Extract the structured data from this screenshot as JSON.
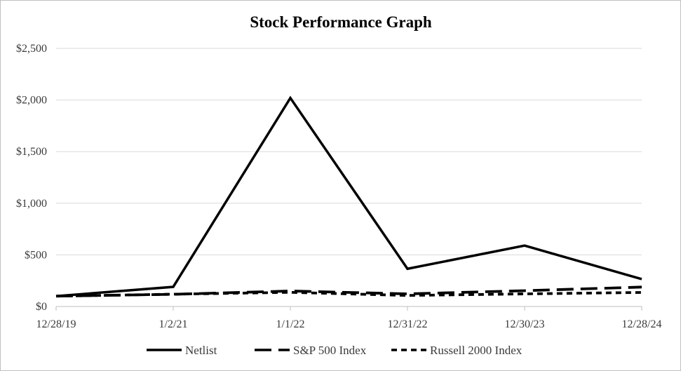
{
  "chart_data": {
    "type": "line",
    "title": "Stock Performance Graph",
    "xlabel": "",
    "ylabel": "",
    "categories": [
      "12/28/19",
      "1/2/21",
      "1/1/22",
      "12/31/22",
      "12/30/23",
      "12/28/24"
    ],
    "ylim": [
      0,
      2500
    ],
    "yticks": [
      0,
      500,
      1000,
      1500,
      2000,
      2500
    ],
    "ytick_labels": [
      "$0",
      "$500",
      "$1,000",
      "$1,500",
      "$2,000",
      "$2,500"
    ],
    "grid": true,
    "legend_position": "bottom",
    "series": [
      {
        "name": "Netlist",
        "values": [
          100,
          190,
          2020,
          365,
          590,
          265
        ],
        "dash": "solid"
      },
      {
        "name": "S&P 500 Index",
        "values": [
          100,
          118,
          150,
          122,
          153,
          188
        ],
        "dash": "long-dash"
      },
      {
        "name": "Russell 2000 Index",
        "values": [
          100,
          119,
          137,
          107,
          122,
          136
        ],
        "dash": "short-dash"
      }
    ],
    "line_color": "#000000"
  }
}
